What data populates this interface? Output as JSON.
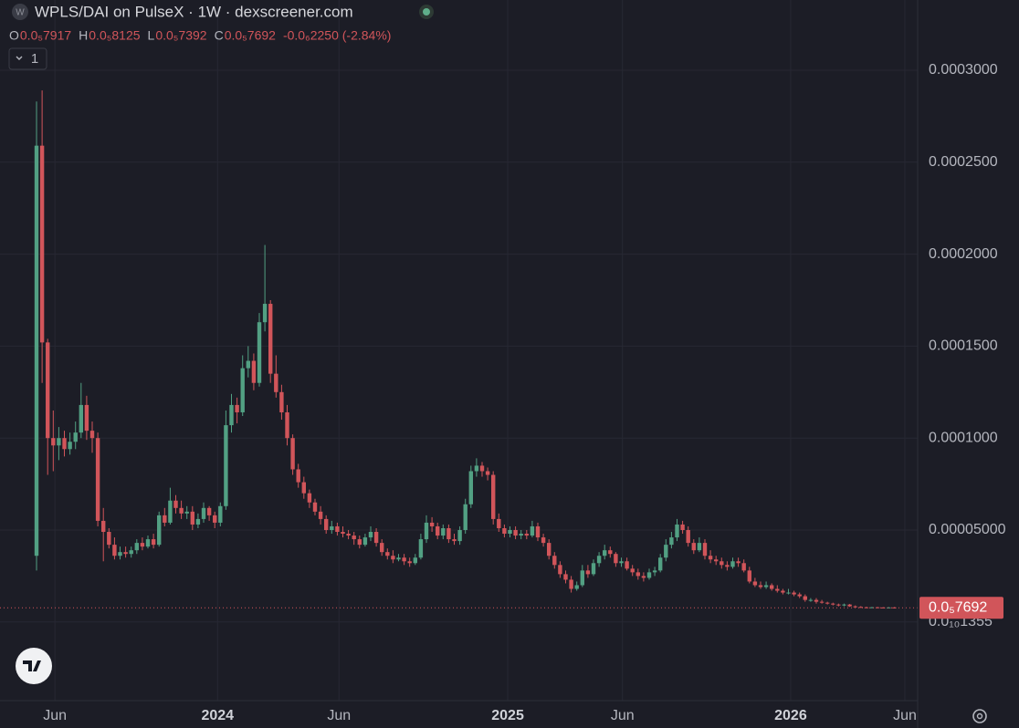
{
  "chart_data": {
    "type": "candlestick",
    "title": "WPLS/DAI on PulseX · 1W · dexscreener.com",
    "ohlc_header": {
      "labels": [
        "O",
        "H",
        "L",
        "C"
      ],
      "values": [
        "0.0₅7917",
        "0.0₅8125",
        "0.0₅7392",
        "0.0₅7692"
      ],
      "change": "-0.0₆2250 (-2.84%)"
    },
    "interval_button": "1",
    "last_price_label": "0.0₅7692",
    "up_color": "#52a083",
    "down_color": "#d1555a",
    "grid": true,
    "open": [
      3.6e-05,
      0.000259,
      0.000152,
      0.0001,
      9.6e-05,
      0.0001,
      9.4e-05,
      9.8e-05,
      0.000103,
      0.000118,
      0.000104,
      0.0001,
      5.5e-05,
      4.9e-05,
      4.2e-05,
      3.6e-05,
      3.8e-05,
      3.7e-05,
      3.9e-05,
      4.3e-05,
      4.1e-05,
      4.5e-05,
      4.2e-05,
      5.8e-05,
      5.4e-05,
      6.6e-05,
      6.2e-05,
      5.9e-05,
      6e-05,
      5.3e-05,
      5.6e-05,
      6.2e-05,
      5.8e-05,
      5.4e-05,
      6.3e-05,
      0.000107,
      0.000118,
      0.000114,
      0.000138,
      0.000142,
      0.00013,
      0.000163,
      0.000173,
      0.000135,
      0.000125,
      0.000114,
      0.0001,
      8.3e-05,
      7.6e-05,
      7e-05,
      6.5e-05,
      6e-05,
      5.6e-05,
      5e-05,
      5.2e-05,
      4.9e-05,
      4.8e-05,
      4.7e-05,
      4.5e-05,
      4.2e-05,
      4.6e-05,
      4.9e-05,
      4.3e-05,
      3.8e-05,
      3.6e-05,
      3.4e-05,
      3.5e-05,
      3.3e-05,
      3.2e-05,
      3.5e-05,
      4.5e-05,
      5.4e-05,
      5.2e-05,
      4.7e-05,
      5.1e-05,
      4.5e-05,
      4.4e-05,
      5e-05,
      6.4e-05,
      8.2e-05,
      8.5e-05,
      8.2e-05,
      8e-05,
      5.6e-05,
      5.1e-05,
      4.8e-05,
      5e-05,
      4.7e-05,
      4.8e-05,
      4.7e-05,
      5.2e-05,
      4.6e-05,
      4.3e-05,
      3.6e-05,
      3.1e-05,
      2.6e-05,
      2.3e-05,
      1.8e-05,
      2e-05,
      2.8e-05,
      2.6e-05,
      3.2e-05,
      3.6e-05,
      3.9e-05,
      3.7e-05,
      3.2e-05,
      3.3e-05,
      2.9e-05,
      2.7e-05,
      2.5e-05,
      2.4e-05,
      2.7e-05,
      2.8e-05,
      3.5e-05,
      4.2e-05,
      4.6e-05,
      5.3e-05,
      5e-05,
      4.3e-05,
      3.9e-05,
      4.3e-05,
      3.6e-05,
      3.4e-05,
      3.3e-05,
      3.1e-05,
      3e-05,
      3.3e-05,
      3.2e-05,
      2.8e-05,
      2.2e-05,
      2e-05,
      1.9e-05,
      2e-05,
      1.8e-05,
      1.7e-05,
      1.6e-05,
      1.6e-05,
      1.5e-05,
      1.4e-05,
      1.2e-05,
      1.2e-05,
      1.1e-05,
      1.05e-05,
      1e-05,
      9.5e-06,
      9e-06,
      9.5e-06,
      8.5e-06,
      8.2e-06,
      8e-06,
      7.9e-06,
      8e-06,
      7.9e-06,
      7.8e-06,
      7.917e-06
    ],
    "high": [
      0.000283,
      0.000289,
      0.000154,
      0.000115,
      0.000106,
      0.000104,
      0.000103,
      0.000109,
      0.00013,
      0.000123,
      0.000109,
      0.000103,
      6.2e-05,
      5.1e-05,
      4.6e-05,
      4.1e-05,
      4.1e-05,
      4.1e-05,
      4.5e-05,
      4.6e-05,
      4.7e-05,
      4.8e-05,
      6e-05,
      6.2e-05,
      7.3e-05,
      6.9e-05,
      6.6e-05,
      6.3e-05,
      6.3e-05,
      5.9e-05,
      6.5e-05,
      6.3e-05,
      6e-05,
      6.5e-05,
      0.000115,
      0.000124,
      0.000122,
      0.000145,
      0.00015,
      0.000146,
      0.000168,
      0.000205,
      0.000175,
      0.000145,
      0.000129,
      0.000118,
      0.000102,
      8.6e-05,
      7.9e-05,
      7.2e-05,
      6.7e-05,
      6.3e-05,
      5.8e-05,
      5.5e-05,
      5.4e-05,
      5.2e-05,
      5e-05,
      4.9e-05,
      4.7e-05,
      4.8e-05,
      5.2e-05,
      5.1e-05,
      4.5e-05,
      4e-05,
      3.9e-05,
      3.7e-05,
      3.7e-05,
      3.5e-05,
      3.7e-05,
      4.8e-05,
      5.8e-05,
      5.7e-05,
      5.4e-05,
      5.3e-05,
      5.3e-05,
      4.8e-05,
      5.2e-05,
      6.7e-05,
      8.5e-05,
      8.9e-05,
      8.7e-05,
      8.4e-05,
      8.2e-05,
      5.9e-05,
      5.3e-05,
      5.2e-05,
      5.2e-05,
      5e-05,
      5e-05,
      5.5e-05,
      5.4e-05,
      4.8e-05,
      4.5e-05,
      3.8e-05,
      3.3e-05,
      2.8e-05,
      2.5e-05,
      2.2e-05,
      3.1e-05,
      3.1e-05,
      3.4e-05,
      3.8e-05,
      4.2e-05,
      4.1e-05,
      3.8e-05,
      3.5e-05,
      3.5e-05,
      3.1e-05,
      2.9e-05,
      2.7e-05,
      2.9e-05,
      3e-05,
      3.7e-05,
      4.5e-05,
      4.9e-05,
      5.6e-05,
      5.5e-05,
      5.2e-05,
      4.5e-05,
      4.6e-05,
      4.5e-05,
      3.9e-05,
      3.6e-05,
      3.5e-05,
      3.3e-05,
      3.5e-05,
      3.5e-05,
      3.4e-05,
      3e-05,
      2.4e-05,
      2.2e-05,
      2.2e-05,
      2.1e-05,
      2e-05,
      1.8e-05,
      1.8e-05,
      1.7e-05,
      1.6e-05,
      1.5e-05,
      1.3e-05,
      1.3e-05,
      1.2e-05,
      1.1e-05,
      1.05e-05,
      1e-05,
      1e-05,
      9.8e-06,
      9e-06,
      8.6e-06,
      8.3e-06,
      8.2e-06,
      8.2e-06,
      8.1e-06,
      8.1e-06,
      8.125e-06
    ],
    "low": [
      2.8e-05,
      0.00013,
      8e-05,
      8.2e-05,
      8.8e-05,
      9e-05,
      9.1e-05,
      9.4e-05,
      0.0001,
      9.9e-05,
      9.2e-05,
      5.2e-05,
      3.3e-05,
      4e-05,
      3.4e-05,
      3.4e-05,
      3.5e-05,
      3.5e-05,
      3.7e-05,
      3.9e-05,
      4e-05,
      4e-05,
      4.1e-05,
      5.2e-05,
      5.3e-05,
      5.9e-05,
      5.6e-05,
      5.6e-05,
      5e-05,
      5.1e-05,
      5.4e-05,
      5.5e-05,
      5.1e-05,
      5.2e-05,
      6.1e-05,
      0.000103,
      0.000108,
      0.000112,
      0.000133,
      0.000126,
      0.000128,
      0.000158,
      0.00013,
      0.000122,
      0.00011,
      9.6e-05,
      8e-05,
      7.3e-05,
      6.7e-05,
      6.2e-05,
      5.8e-05,
      5.3e-05,
      4.8e-05,
      4.8e-05,
      4.7e-05,
      4.6e-05,
      4.5e-05,
      4.2e-05,
      4e-05,
      4.1e-05,
      4.4e-05,
      4.1e-05,
      3.6e-05,
      3.4e-05,
      3.2e-05,
      3.3e-05,
      3.1e-05,
      3e-05,
      3.1e-05,
      3.4e-05,
      4.3e-05,
      4.9e-05,
      4.5e-05,
      4.5e-05,
      4.3e-05,
      4.2e-05,
      4.2e-05,
      4.8e-05,
      6.2e-05,
      7.9e-05,
      7.9e-05,
      7.7e-05,
      5.3e-05,
      4.9e-05,
      4.6e-05,
      4.6e-05,
      4.5e-05,
      4.5e-05,
      4.5e-05,
      4.6e-05,
      4.4e-05,
      4.1e-05,
      3.4e-05,
      2.9e-05,
      2.4e-05,
      2.1e-05,
      1.6e-05,
      1.7e-05,
      1.9e-05,
      2.4e-05,
      2.5e-05,
      3e-05,
      3.4e-05,
      3.5e-05,
      3e-05,
      3e-05,
      2.8e-05,
      2.5e-05,
      2.3e-05,
      2.2e-05,
      2.3e-05,
      2.5e-05,
      2.7e-05,
      3.3e-05,
      4e-05,
      4.4e-05,
      4.8e-05,
      4.1e-05,
      3.7e-05,
      3.8e-05,
      3.4e-05,
      3.2e-05,
      3.1e-05,
      2.9e-05,
      2.8e-05,
      2.9e-05,
      3e-05,
      2.7e-05,
      2.1e-05,
      1.9e-05,
      1.8e-05,
      1.8e-05,
      1.7e-05,
      1.6e-05,
      1.5e-05,
      1.5e-05,
      1.4e-05,
      1.3e-05,
      1.1e-05,
      1.1e-05,
      1e-05,
      1e-05,
      9.5e-06,
      9e-06,
      8.5e-06,
      8.5e-06,
      8.2e-06,
      7.9e-06,
      7.7e-06,
      7.7e-06,
      7.7e-06,
      7.7e-06,
      7.6e-06,
      7.6e-06,
      7.392e-06
    ],
    "close": [
      0.000259,
      0.000152,
      0.0001,
      9.6e-05,
      0.0001,
      9.4e-05,
      9.8e-05,
      0.000103,
      0.000118,
      0.000104,
      0.0001,
      5.5e-05,
      4.9e-05,
      4.2e-05,
      3.6e-05,
      3.8e-05,
      3.7e-05,
      3.9e-05,
      4.3e-05,
      4.1e-05,
      4.5e-05,
      4.2e-05,
      5.8e-05,
      5.4e-05,
      6.6e-05,
      6.2e-05,
      5.9e-05,
      6e-05,
      5.3e-05,
      5.6e-05,
      6.2e-05,
      5.8e-05,
      5.4e-05,
      6.3e-05,
      0.000107,
      0.000118,
      0.000114,
      0.000138,
      0.000142,
      0.00013,
      0.000163,
      0.000173,
      0.000135,
      0.000125,
      0.000114,
      0.0001,
      8.3e-05,
      7.6e-05,
      7e-05,
      6.5e-05,
      6e-05,
      5.6e-05,
      5e-05,
      5.2e-05,
      4.9e-05,
      4.8e-05,
      4.7e-05,
      4.5e-05,
      4.2e-05,
      4.6e-05,
      4.9e-05,
      4.3e-05,
      3.8e-05,
      3.6e-05,
      3.4e-05,
      3.5e-05,
      3.3e-05,
      3.2e-05,
      3.5e-05,
      4.5e-05,
      5.4e-05,
      5.2e-05,
      4.7e-05,
      5.1e-05,
      4.5e-05,
      4.4e-05,
      5e-05,
      6.4e-05,
      8.2e-05,
      8.5e-05,
      8.2e-05,
      8e-05,
      5.6e-05,
      5.1e-05,
      4.8e-05,
      5e-05,
      4.7e-05,
      4.8e-05,
      4.7e-05,
      5.2e-05,
      4.6e-05,
      4.3e-05,
      3.6e-05,
      3.1e-05,
      2.6e-05,
      2.3e-05,
      1.8e-05,
      2e-05,
      2.8e-05,
      2.6e-05,
      3.2e-05,
      3.6e-05,
      3.9e-05,
      3.7e-05,
      3.2e-05,
      3.3e-05,
      2.9e-05,
      2.7e-05,
      2.5e-05,
      2.4e-05,
      2.7e-05,
      2.8e-05,
      3.5e-05,
      4.2e-05,
      4.6e-05,
      5.3e-05,
      5e-05,
      4.3e-05,
      3.9e-05,
      4.3e-05,
      3.6e-05,
      3.4e-05,
      3.3e-05,
      3.1e-05,
      3e-05,
      3.3e-05,
      3.2e-05,
      2.8e-05,
      2.2e-05,
      2e-05,
      1.9e-05,
      2e-05,
      1.8e-05,
      1.7e-05,
      1.6e-05,
      1.6e-05,
      1.5e-05,
      1.4e-05,
      1.2e-05,
      1.2e-05,
      1.1e-05,
      1.05e-05,
      1e-05,
      9.5e-06,
      9e-06,
      9.5e-06,
      8.5e-06,
      8.2e-06,
      8e-06,
      7.9e-06,
      8e-06,
      7.9e-06,
      7.8e-06,
      7.917e-06,
      7.692e-06
    ],
    "xlim": [
      -6.56,
      158.2
    ],
    "xticks": [
      {
        "value": 3.3,
        "label": "Jun"
      },
      {
        "value": 32.5,
        "label": "2024"
      },
      {
        "value": 54.3,
        "label": "Jun"
      },
      {
        "value": 84.6,
        "label": "2025"
      },
      {
        "value": 105.2,
        "label": "Jun"
      },
      {
        "value": 135.4,
        "label": "2026"
      },
      {
        "value": 155.9,
        "label": "Jun"
      }
    ],
    "ylim": [
      -4.276e-05,
      0.0003382
    ],
    "yticks": [
      {
        "value": 1.355e-11,
        "label": "0.0₁₀1355"
      },
      {
        "value": 5e-05,
        "label": "0.00005000"
      },
      {
        "value": 0.0001,
        "label": "0.0001000"
      },
      {
        "value": 0.00015,
        "label": "0.0001500"
      },
      {
        "value": 0.0002,
        "label": "0.0002000"
      },
      {
        "value": 0.00025,
        "label": "0.0002500"
      },
      {
        "value": 0.0003,
        "label": "0.0003000"
      }
    ]
  }
}
